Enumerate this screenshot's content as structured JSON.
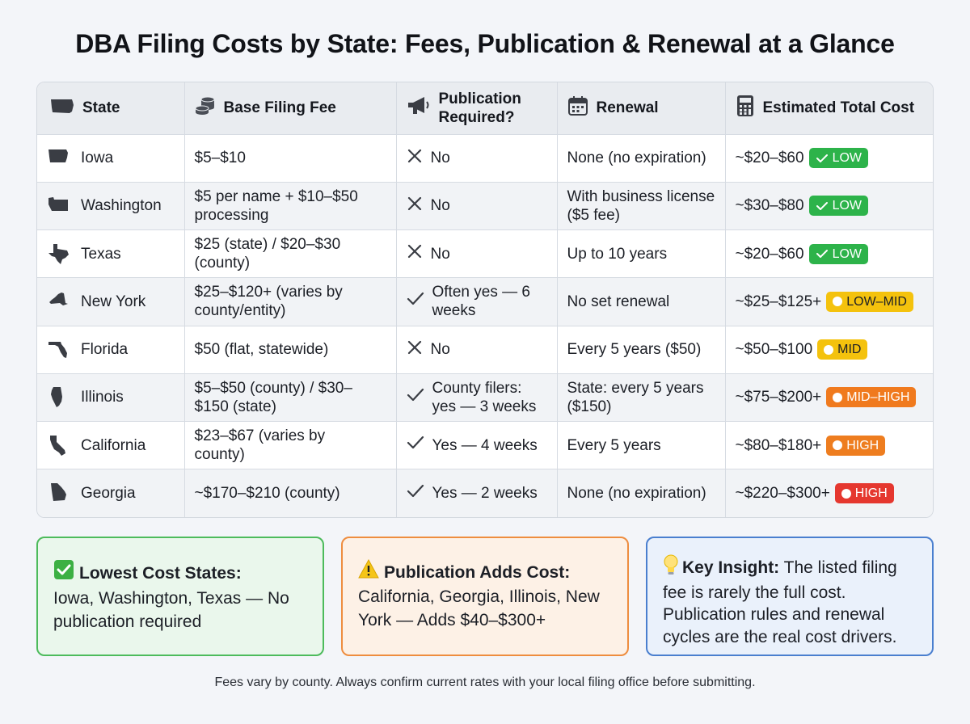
{
  "title": "DBA Filing Costs by State: Fees, Publication & Renewal at a Glance",
  "table": {
    "headers": {
      "state": "State",
      "fee": "Base Filing Fee",
      "publication": "Publication Required?",
      "renewal": "Renewal",
      "total": "Estimated Total Cost"
    },
    "rows": [
      {
        "state": "Iowa",
        "fee": "$5–$10",
        "pub_mark": "cross",
        "publication": "No",
        "renewal": "None (no expiration)",
        "total": "~$20–$60",
        "badge": "LOW",
        "badge_color": "#2db34a"
      },
      {
        "state": "Washington",
        "fee": "$5 per name + $10–$50 processing",
        "pub_mark": "cross",
        "publication": "No",
        "renewal": "With business license ($5 fee)",
        "total": "~$30–$80",
        "badge": "LOW",
        "badge_color": "#2db34a"
      },
      {
        "state": "Texas",
        "fee": "$25 (state) / $20–$30 (county)",
        "pub_mark": "cross",
        "publication": "No",
        "renewal": "Up to 10 years",
        "total": "~$20–$60",
        "badge": "LOW",
        "badge_color": "#2db34a"
      },
      {
        "state": "New York",
        "fee": "$25–$120+ (varies by county/entity)",
        "pub_mark": "check",
        "publication": "Often yes — 6 weeks",
        "renewal": "No set renewal",
        "total": "~$25–$125+",
        "badge": "LOW–MID",
        "badge_color": "#f4c20d"
      },
      {
        "state": "Florida",
        "fee": "$50 (flat, statewide)",
        "pub_mark": "cross",
        "publication": "No",
        "renewal": "Every 5 years ($50)",
        "total": "~$50–$100",
        "badge": "MID",
        "badge_color": "#f4c20d"
      },
      {
        "state": "Illinois",
        "fee": "$5–$50 (county) / $30–$150 (state)",
        "pub_mark": "check",
        "publication": "County filers: yes — 3 weeks",
        "renewal": "State: every 5 years ($150)",
        "total": "~$75–$200+",
        "badge": "MID–HIGH",
        "badge_color": "#f07a1e"
      },
      {
        "state": "California",
        "fee": "$23–$67 (varies by county)",
        "pub_mark": "check",
        "publication": "Yes — 4 weeks",
        "renewal": "Every 5 years",
        "total": "~$80–$180+",
        "badge": "HIGH",
        "badge_color": "#ee7d1f"
      },
      {
        "state": "Georgia",
        "fee": "~$170–$210 (county)",
        "pub_mark": "check",
        "publication": "Yes — 2 weeks",
        "renewal": "None (no expiration)",
        "total": "~$220–$300+",
        "badge": "HIGH",
        "badge_color": "#e5372f"
      }
    ]
  },
  "cards": {
    "lowest": {
      "icon": "check-box-icon",
      "title": "Lowest Cost States:",
      "body": "Iowa, Washington, Texas — No publication required"
    },
    "publication": {
      "icon": "warning-icon",
      "title": "Publication Adds Cost:",
      "body": "California, Georgia, Illinois, New York — Adds $40–$300+"
    },
    "insight": {
      "icon": "lightbulb-icon",
      "title": "Key Insight:",
      "body": "The listed filing fee is rarely the full cost. Publication rules and renewal cycles are the real cost drivers."
    }
  },
  "footnote": "Fees vary by county. Always confirm current rates with your local filing office before submitting."
}
